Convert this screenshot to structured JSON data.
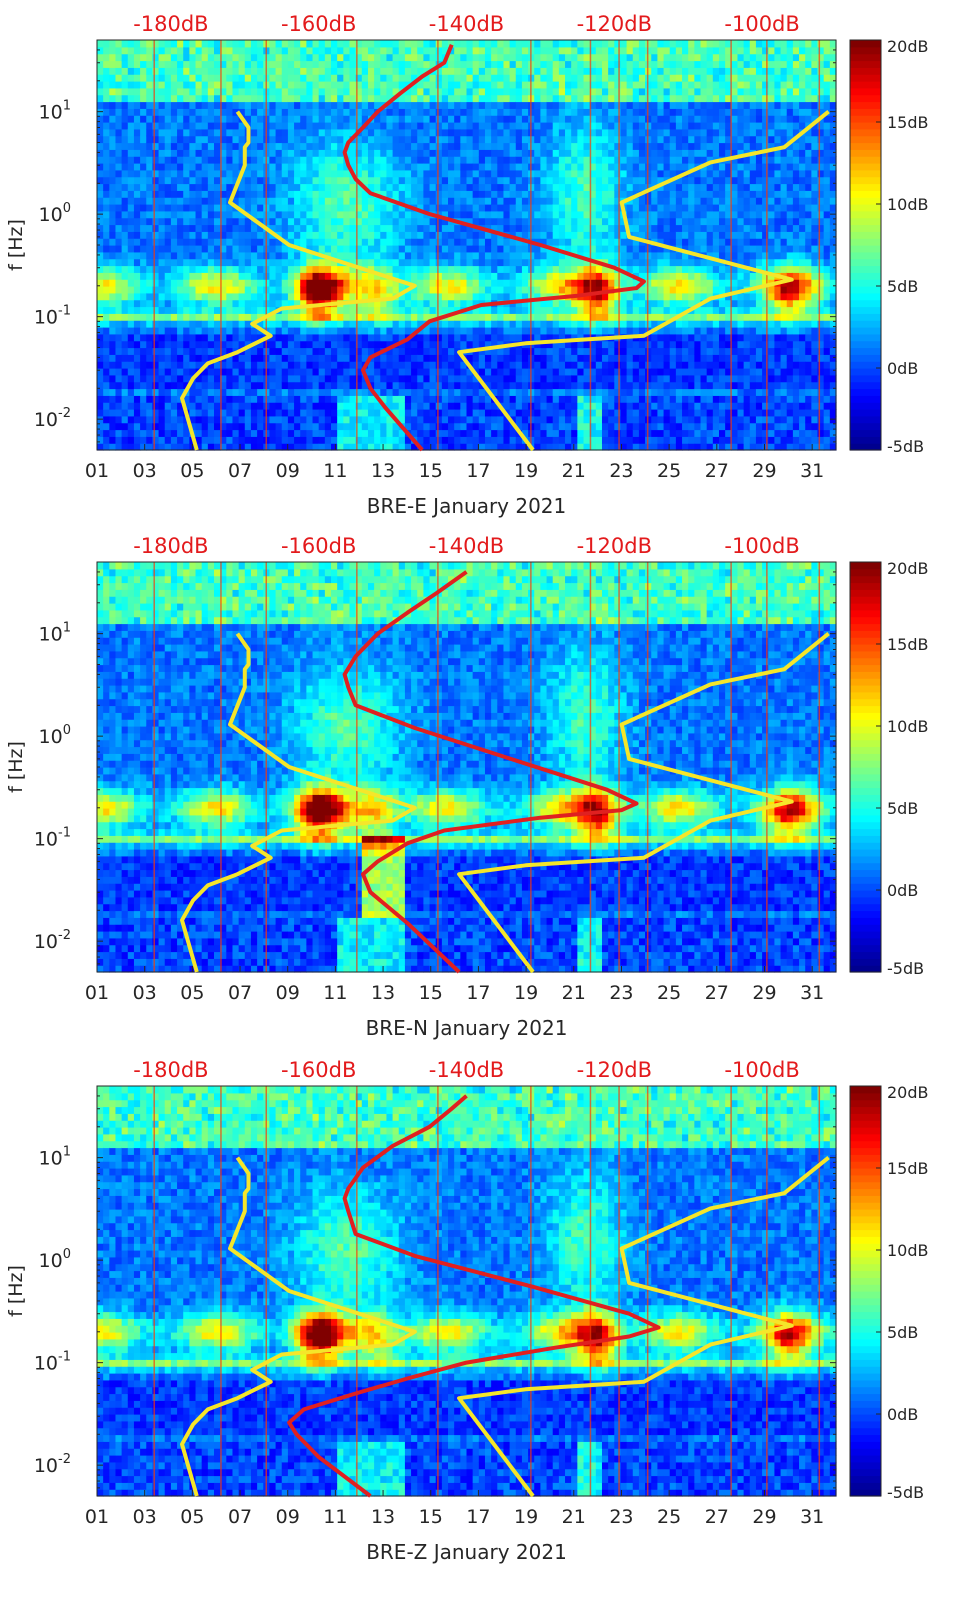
{
  "colors": {
    "noise_model_line": "#f5e62a",
    "psd_line": "#e02020",
    "top_db_text": "#e31a1c",
    "colormap": [
      "#00008f",
      "#0000ff",
      "#0080ff",
      "#00ffff",
      "#80ff80",
      "#ffff00",
      "#ff8000",
      "#ff0000",
      "#800000"
    ]
  },
  "chart_data": [
    {
      "type": "heatmap",
      "xlabel": "BRE-E January 2021",
      "ylabel": "f [Hz]",
      "x_ticks": [
        "01",
        "03",
        "05",
        "07",
        "09",
        "11",
        "13",
        "15",
        "17",
        "19",
        "21",
        "23",
        "25",
        "27",
        "29",
        "31"
      ],
      "x_range_days": [
        1,
        32
      ],
      "y_scale": "log",
      "y_range_hz": [
        0.005,
        50
      ],
      "y_ticks": [
        {
          "value": 10,
          "base": "10",
          "exp": "1"
        },
        {
          "value": 1,
          "base": "10",
          "exp": "0"
        },
        {
          "value": 0.1,
          "base": "10",
          "exp": "-1"
        },
        {
          "value": 0.01,
          "base": "10",
          "exp": "-2"
        }
      ],
      "top_axis_labels": [
        "-180dB",
        "-160dB",
        "-140dB",
        "-120dB",
        "-100dB"
      ],
      "top_axis_range_db": [
        -190,
        -90
      ],
      "colorbar": {
        "range_db": [
          -5,
          20
        ],
        "labels": [
          "20dB",
          "15dB",
          "10dB",
          "5dB",
          "0dB",
          "-5dB"
        ]
      },
      "noise_models": {
        "low": [
          [
            -176.5,
            0.005
          ],
          [
            -178.5,
            0.016
          ],
          [
            -177,
            0.025
          ],
          [
            -175,
            0.035
          ],
          [
            -171,
            0.045
          ],
          [
            -166.5,
            0.065
          ],
          [
            -169,
            0.085
          ],
          [
            -165,
            0.12
          ],
          [
            -150,
            0.15
          ],
          [
            -147,
            0.2
          ],
          [
            -164,
            0.5
          ],
          [
            -172,
            1.3
          ],
          [
            -170,
            3
          ],
          [
            -170,
            4.5
          ],
          [
            -169.5,
            5
          ],
          [
            -169.5,
            7
          ],
          [
            -171,
            10
          ]
        ],
        "high": [
          [
            -131,
            0.005
          ],
          [
            -141,
            0.045
          ],
          [
            -132,
            0.055
          ],
          [
            -116,
            0.065
          ],
          [
            -107,
            0.15
          ],
          [
            -96,
            0.23
          ],
          [
            -118,
            0.6
          ],
          [
            -119,
            1.3
          ],
          [
            -107,
            3.2
          ],
          [
            -97,
            4.5
          ],
          [
            -91,
            10
          ]
        ]
      },
      "psd_line": [
        [
          -146,
          0.005
        ],
        [
          -151,
          0.013
        ],
        [
          -153,
          0.02
        ],
        [
          -154,
          0.03
        ],
        [
          -153,
          0.04
        ],
        [
          -148,
          0.06
        ],
        [
          -145,
          0.09
        ],
        [
          -138,
          0.13
        ],
        [
          -125,
          0.16
        ],
        [
          -117,
          0.19
        ],
        [
          -116,
          0.22
        ],
        [
          -120,
          0.3
        ],
        [
          -130,
          0.5
        ],
        [
          -145,
          1.0
        ],
        [
          -153,
          1.6
        ],
        [
          -155,
          2.2
        ],
        [
          -156,
          3
        ],
        [
          -156.5,
          4
        ],
        [
          -156,
          5
        ],
        [
          -154,
          7
        ],
        [
          -152,
          10
        ],
        [
          -149,
          15
        ],
        [
          -146,
          22
        ],
        [
          -143,
          30
        ],
        [
          -142,
          45
        ]
      ]
    },
    {
      "type": "heatmap",
      "xlabel": "BRE-N January 2021",
      "ylabel": "f [Hz]",
      "x_ticks": [
        "01",
        "03",
        "05",
        "07",
        "09",
        "11",
        "13",
        "15",
        "17",
        "19",
        "21",
        "23",
        "25",
        "27",
        "29",
        "31"
      ],
      "x_range_days": [
        1,
        32
      ],
      "y_scale": "log",
      "y_range_hz": [
        0.005,
        50
      ],
      "y_ticks": [
        {
          "value": 10,
          "base": "10",
          "exp": "1"
        },
        {
          "value": 1,
          "base": "10",
          "exp": "0"
        },
        {
          "value": 0.1,
          "base": "10",
          "exp": "-1"
        },
        {
          "value": 0.01,
          "base": "10",
          "exp": "-2"
        }
      ],
      "top_axis_labels": [
        "-180dB",
        "-160dB",
        "-140dB",
        "-120dB",
        "-100dB"
      ],
      "top_axis_range_db": [
        -190,
        -90
      ],
      "colorbar": {
        "range_db": [
          -5,
          20
        ],
        "labels": [
          "20dB",
          "15dB",
          "10dB",
          "5dB",
          "0dB",
          "-5dB"
        ]
      },
      "noise_models": {
        "low": [
          [
            -176.5,
            0.005
          ],
          [
            -178.5,
            0.016
          ],
          [
            -177,
            0.025
          ],
          [
            -175,
            0.035
          ],
          [
            -171,
            0.045
          ],
          [
            -166.5,
            0.065
          ],
          [
            -169,
            0.085
          ],
          [
            -165,
            0.12
          ],
          [
            -150,
            0.15
          ],
          [
            -147,
            0.2
          ],
          [
            -164,
            0.5
          ],
          [
            -172,
            1.3
          ],
          [
            -170,
            3
          ],
          [
            -170,
            4.5
          ],
          [
            -169.5,
            5
          ],
          [
            -169.5,
            7
          ],
          [
            -171,
            10
          ]
        ],
        "high": [
          [
            -131,
            0.005
          ],
          [
            -141,
            0.045
          ],
          [
            -132,
            0.055
          ],
          [
            -116,
            0.065
          ],
          [
            -107,
            0.15
          ],
          [
            -96,
            0.23
          ],
          [
            -118,
            0.6
          ],
          [
            -119,
            1.3
          ],
          [
            -107,
            3.2
          ],
          [
            -97,
            4.5
          ],
          [
            -91,
            10
          ]
        ]
      },
      "psd_line": [
        [
          -141,
          0.005
        ],
        [
          -148,
          0.015
        ],
        [
          -153,
          0.03
        ],
        [
          -154,
          0.045
        ],
        [
          -152,
          0.06
        ],
        [
          -148,
          0.09
        ],
        [
          -143,
          0.12
        ],
        [
          -130,
          0.16
        ],
        [
          -119,
          0.19
        ],
        [
          -117,
          0.22
        ],
        [
          -121,
          0.3
        ],
        [
          -134,
          0.6
        ],
        [
          -147,
          1.2
        ],
        [
          -155,
          2
        ],
        [
          -156,
          3
        ],
        [
          -156.5,
          4
        ],
        [
          -155,
          6
        ],
        [
          -152,
          10
        ],
        [
          -148,
          16
        ],
        [
          -144,
          25
        ],
        [
          -140,
          40
        ]
      ]
    },
    {
      "type": "heatmap",
      "xlabel": "BRE-Z January 2021",
      "ylabel": "f [Hz]",
      "x_ticks": [
        "01",
        "03",
        "05",
        "07",
        "09",
        "11",
        "13",
        "15",
        "17",
        "19",
        "21",
        "23",
        "25",
        "27",
        "29",
        "31"
      ],
      "x_range_days": [
        1,
        32
      ],
      "y_scale": "log",
      "y_range_hz": [
        0.005,
        50
      ],
      "y_ticks": [
        {
          "value": 10,
          "base": "10",
          "exp": "1"
        },
        {
          "value": 1,
          "base": "10",
          "exp": "0"
        },
        {
          "value": 0.1,
          "base": "10",
          "exp": "-1"
        },
        {
          "value": 0.01,
          "base": "10",
          "exp": "-2"
        }
      ],
      "top_axis_labels": [
        "-180dB",
        "-160dB",
        "-140dB",
        "-120dB",
        "-100dB"
      ],
      "top_axis_range_db": [
        -190,
        -90
      ],
      "colorbar": {
        "range_db": [
          -5,
          20
        ],
        "labels": [
          "20dB",
          "15dB",
          "10dB",
          "5dB",
          "0dB",
          "-5dB"
        ]
      },
      "noise_models": {
        "low": [
          [
            -176.5,
            0.005
          ],
          [
            -178.5,
            0.016
          ],
          [
            -177,
            0.025
          ],
          [
            -175,
            0.035
          ],
          [
            -171,
            0.045
          ],
          [
            -166.5,
            0.065
          ],
          [
            -169,
            0.085
          ],
          [
            -165,
            0.12
          ],
          [
            -150,
            0.15
          ],
          [
            -147,
            0.2
          ],
          [
            -164,
            0.5
          ],
          [
            -172,
            1.3
          ],
          [
            -170,
            3
          ],
          [
            -170,
            4.5
          ],
          [
            -169.5,
            5
          ],
          [
            -169.5,
            7
          ],
          [
            -171,
            10
          ]
        ],
        "high": [
          [
            -131,
            0.005
          ],
          [
            -141,
            0.045
          ],
          [
            -132,
            0.055
          ],
          [
            -116,
            0.065
          ],
          [
            -107,
            0.15
          ],
          [
            -96,
            0.23
          ],
          [
            -118,
            0.6
          ],
          [
            -119,
            1.3
          ],
          [
            -107,
            3.2
          ],
          [
            -97,
            4.5
          ],
          [
            -91,
            10
          ]
        ]
      },
      "psd_line": [
        [
          -153,
          0.005
        ],
        [
          -160,
          0.012
        ],
        [
          -163,
          0.02
        ],
        [
          -164,
          0.026
        ],
        [
          -162,
          0.035
        ],
        [
          -155,
          0.05
        ],
        [
          -148,
          0.07
        ],
        [
          -140,
          0.1
        ],
        [
          -128,
          0.14
        ],
        [
          -118,
          0.18
        ],
        [
          -114,
          0.22
        ],
        [
          -118,
          0.3
        ],
        [
          -131,
          0.55
        ],
        [
          -147,
          1.1
        ],
        [
          -155,
          1.8
        ],
        [
          -156,
          3
        ],
        [
          -156.5,
          4
        ],
        [
          -156,
          5
        ],
        [
          -154,
          8
        ],
        [
          -150,
          13
        ],
        [
          -145,
          20
        ],
        [
          -142,
          30
        ],
        [
          -140,
          40
        ]
      ]
    }
  ]
}
